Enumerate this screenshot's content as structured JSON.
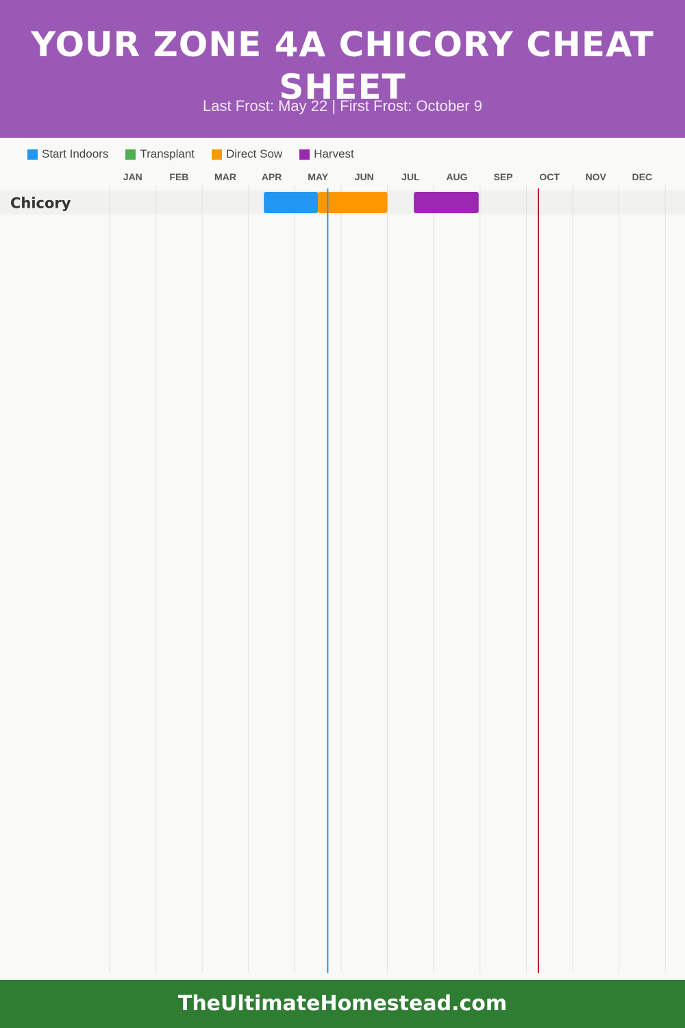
{
  "header": {
    "title": "YOUR ZONE 4A CHICORY CHEAT SHEET",
    "subtitle": "Last Frost: May 22 | First Frost: October 9"
  },
  "legend": [
    {
      "label": "Start Indoors",
      "color": "#2196f3"
    },
    {
      "label": "Transplant",
      "color": "#4caf50"
    },
    {
      "label": "Direct Sow",
      "color": "#ff9800"
    },
    {
      "label": "Harvest",
      "color": "#9c27b0"
    }
  ],
  "footer": {
    "text": "TheUltimateHomestead.com"
  },
  "chart_data": {
    "type": "gantt",
    "months": [
      "JAN",
      "FEB",
      "MAR",
      "APR",
      "MAY",
      "JUN",
      "JUL",
      "AUG",
      "SEP",
      "OCT",
      "NOV",
      "DEC"
    ],
    "crops": [
      {
        "name": "Chicory",
        "periods": [
          {
            "type": "Start Indoors",
            "start_month": 4.33,
            "end_month": 5.5,
            "color": "#2196f3"
          },
          {
            "type": "Direct Sow",
            "start_month": 5.5,
            "end_month": 7.0,
            "color": "#ff9800"
          },
          {
            "type": "Harvest",
            "start_month": 7.57,
            "end_month": 8.97,
            "color": "#9c27b0"
          }
        ]
      }
    ],
    "frost_lines": [
      {
        "label": "Last Frost",
        "month_position": 5.71,
        "color": "#2196f3"
      },
      {
        "label": "First Frost",
        "month_position": 10.26,
        "color": "#b71c1c"
      }
    ]
  }
}
